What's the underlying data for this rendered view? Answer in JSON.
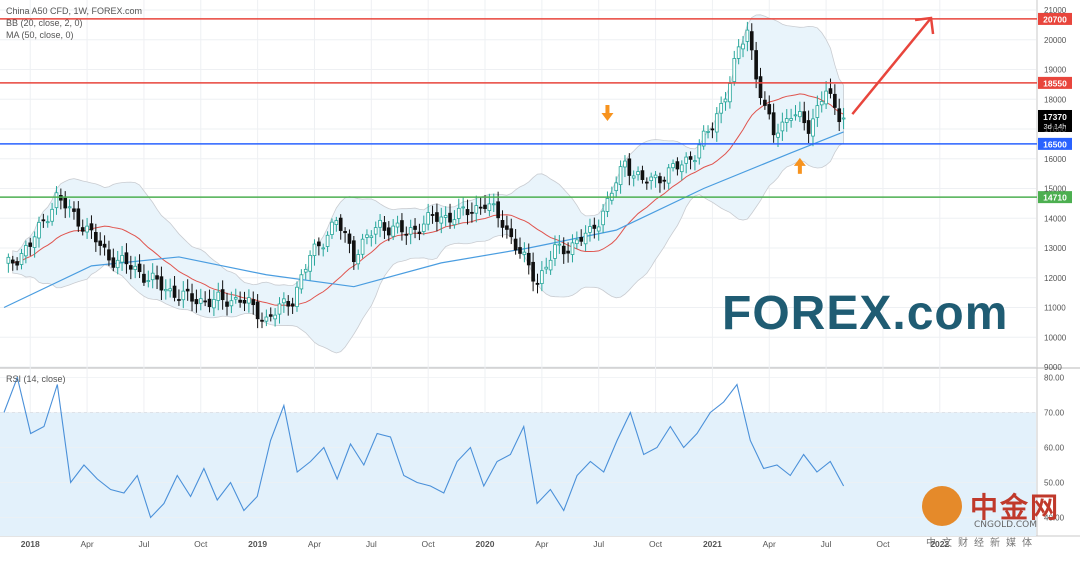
{
  "header": {
    "symbol_line": "China A50 CFD, 1W, FOREX.com",
    "bb_line": "BB (20, close, 2, 0)",
    "ma_line": "MA (50, close, 0)",
    "rsi_line": "RSI (14, close)"
  },
  "brand": {
    "logo_text": "FOREX.com",
    "logo_color": "#1f5c73",
    "logo_accent": "#4cb848",
    "watermark_name": "中金网",
    "watermark_url": "CNGOLD.COM",
    "watermark_tag": "中文财经新媒体"
  },
  "colors": {
    "up": "#26a69a",
    "down": "#111111",
    "bb_fill": "#e9f4fb",
    "ma": "#4a9de0",
    "bb_mid": "#e0544e",
    "rsi_line": "#4a90d9",
    "rsi_band": "#e3f1fb",
    "level_red": "#e8453c",
    "level_blue": "#2962ff",
    "level_green": "#4caf50",
    "arrow_orange": "#f7931e",
    "price_tag_current": "#000000"
  },
  "chart_data": [
    {
      "type": "candlestick",
      "title": "China A50 CFD, 1W, FOREX.com",
      "x_ticks": [
        "2018",
        "Apr",
        "Jul",
        "Oct",
        "2019",
        "Apr",
        "Jul",
        "Oct",
        "2020",
        "Apr",
        "Jul",
        "Oct",
        "2021",
        "Apr",
        "Jul",
        "Oct",
        "2022"
      ],
      "y_ticks": [
        9000,
        10000,
        11000,
        12000,
        13000,
        14000,
        15000,
        16000,
        17000,
        18000,
        19000,
        20000,
        21000
      ],
      "ylim": [
        9000,
        21000
      ],
      "grid": true,
      "horizontal_levels": [
        {
          "value": 20700,
          "label": "20700",
          "color": "#e8453c"
        },
        {
          "value": 18550,
          "label": "18550",
          "color": "#e8453c"
        },
        {
          "value": 16500,
          "label": "16500",
          "color": "#2962ff"
        },
        {
          "value": 14710,
          "label": "14710",
          "color": "#4caf50"
        }
      ],
      "current_price": {
        "value": 17370,
        "label": "17370",
        "countdown": "3d 14h"
      },
      "weekly_close_path": [
        {
          "week": 0,
          "close": 12300
        },
        {
          "week": 6,
          "close": 13100
        },
        {
          "week": 12,
          "close": 14700
        },
        {
          "week": 18,
          "close": 13800
        },
        {
          "week": 24,
          "close": 12700
        },
        {
          "week": 30,
          "close": 12300
        },
        {
          "week": 36,
          "close": 11700
        },
        {
          "week": 42,
          "close": 11300
        },
        {
          "week": 48,
          "close": 11200
        },
        {
          "week": 54,
          "close": 11300
        },
        {
          "week": 60,
          "close": 10600
        },
        {
          "week": 66,
          "close": 11300
        },
        {
          "week": 70,
          "close": 12700
        },
        {
          "week": 76,
          "close": 13900
        },
        {
          "week": 80,
          "close": 12800
        },
        {
          "week": 86,
          "close": 13800
        },
        {
          "week": 92,
          "close": 13500
        },
        {
          "week": 98,
          "close": 14000
        },
        {
          "week": 104,
          "close": 14100
        },
        {
          "week": 110,
          "close": 14500
        },
        {
          "week": 114,
          "close": 13900
        },
        {
          "week": 118,
          "close": 12800
        },
        {
          "week": 122,
          "close": 11900
        },
        {
          "week": 126,
          "close": 12900
        },
        {
          "week": 130,
          "close": 13100
        },
        {
          "week": 134,
          "close": 13500
        },
        {
          "week": 138,
          "close": 14500
        },
        {
          "week": 142,
          "close": 15900
        },
        {
          "week": 146,
          "close": 15200
        },
        {
          "week": 150,
          "close": 15400
        },
        {
          "week": 154,
          "close": 15700
        },
        {
          "week": 158,
          "close": 16200
        },
        {
          "week": 162,
          "close": 17100
        },
        {
          "week": 166,
          "close": 18600
        },
        {
          "week": 168,
          "close": 19600
        },
        {
          "week": 170,
          "close": 20400
        },
        {
          "week": 172,
          "close": 18800
        },
        {
          "week": 174,
          "close": 17600
        },
        {
          "week": 176,
          "close": 16900
        },
        {
          "week": 180,
          "close": 17500
        },
        {
          "week": 184,
          "close": 17100
        },
        {
          "week": 188,
          "close": 18300
        },
        {
          "week": 190,
          "close": 17600
        },
        {
          "week": 192,
          "close": 17370
        }
      ],
      "moving_average_50": [
        {
          "week": 0,
          "value": 11000
        },
        {
          "week": 20,
          "value": 12400
        },
        {
          "week": 40,
          "value": 12700
        },
        {
          "week": 60,
          "value": 12100
        },
        {
          "week": 80,
          "value": 11700
        },
        {
          "week": 100,
          "value": 12500
        },
        {
          "week": 120,
          "value": 13000
        },
        {
          "week": 140,
          "value": 13600
        },
        {
          "week": 160,
          "value": 15000
        },
        {
          "week": 180,
          "value": 16200
        },
        {
          "week": 192,
          "value": 16900
        }
      ],
      "bollinger": {
        "upper_peak": 20800,
        "lower_trough": 9700
      },
      "annotations": [
        {
          "kind": "arrow_down",
          "color": "orange",
          "near_week": 138,
          "value": 17000
        },
        {
          "kind": "arrow_up",
          "color": "orange",
          "near_week": 182,
          "value": 16300
        },
        {
          "kind": "trend_arrow_up",
          "color": "red",
          "from_week": 194,
          "from_value": 17500,
          "to_week": 212,
          "to_value": 21000
        }
      ]
    },
    {
      "type": "line",
      "title": "RSI (14, close)",
      "y_ticks": [
        40,
        50,
        60,
        70,
        80
      ],
      "ylim": [
        37,
        81
      ],
      "band": [
        30,
        70
      ],
      "series": [
        {
          "values": [
            70,
            80,
            64,
            66,
            78,
            50,
            55,
            51,
            48,
            47,
            52,
            40,
            44,
            52,
            46,
            54,
            45,
            50,
            42,
            46,
            62,
            72,
            53,
            56,
            60,
            51,
            61,
            55,
            64,
            63,
            52,
            50,
            49,
            47,
            56,
            60,
            49,
            56,
            58,
            66,
            44,
            48,
            42,
            52,
            56,
            53,
            62,
            70,
            58,
            60,
            66,
            60,
            64,
            70,
            73,
            78,
            62,
            54,
            55,
            52,
            58,
            53,
            56,
            49
          ]
        }
      ]
    }
  ]
}
